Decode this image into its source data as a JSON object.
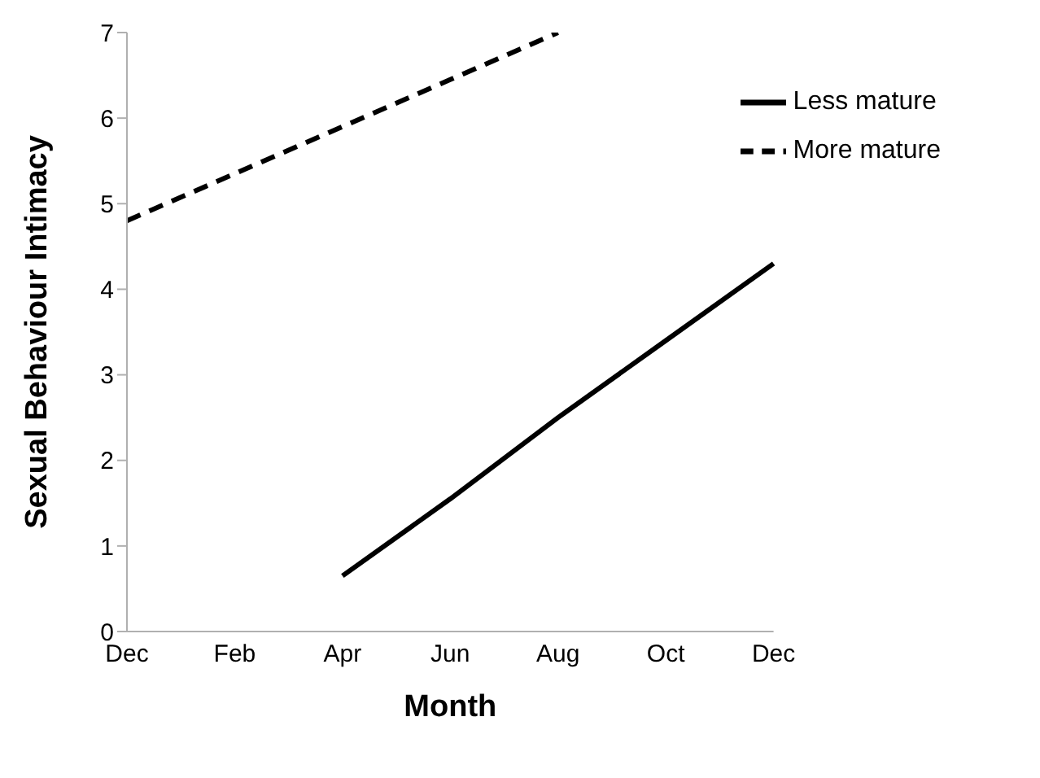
{
  "chart_data": {
    "type": "line",
    "xlabel": "Month",
    "ylabel": "Sexual Behaviour Intimacy",
    "categories": [
      "Dec",
      "Feb",
      "Apr",
      "Jun",
      "Aug",
      "Oct",
      "Dec"
    ],
    "ylim": [
      0,
      7
    ],
    "yticks": [
      0,
      1,
      2,
      3,
      4,
      5,
      6,
      7
    ],
    "legend": "top right",
    "series": [
      {
        "name": "More mature",
        "color": "#000000",
        "line_style": "dashed",
        "values": [
          4.8,
          5.35,
          5.9,
          6.45,
          7.0,
          null,
          null
        ]
      },
      {
        "name": "Less mature",
        "color": "#000000",
        "line_style": "solid",
        "values": [
          null,
          null,
          0.65,
          1.55,
          2.5,
          3.4,
          4.3
        ]
      }
    ]
  }
}
